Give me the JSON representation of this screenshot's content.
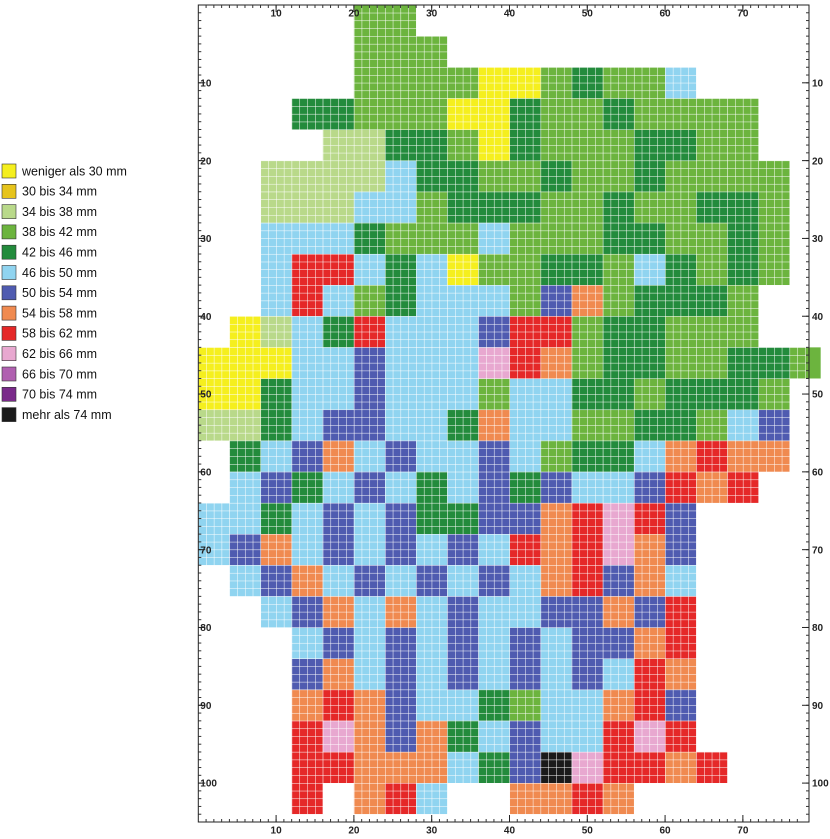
{
  "map": {
    "xlim": [
      0,
      78.5
    ],
    "ylim": [
      0,
      105
    ],
    "xticks": [
      10,
      20,
      30,
      40,
      50,
      60,
      70
    ],
    "yticks": [
      10,
      20,
      30,
      40,
      50,
      60,
      70,
      80,
      90,
      100
    ],
    "legend": [
      {
        "label": "weniger als 30 mm",
        "color": "#f5ef1e"
      },
      {
        "label": "30 bis 34 mm",
        "color": "#e6c41c"
      },
      {
        "label": "34 bis 38 mm",
        "color": "#b9d98a"
      },
      {
        "label": "38 bis 42 mm",
        "color": "#6cb43e"
      },
      {
        "label": "42 bis 46 mm",
        "color": "#238b3c"
      },
      {
        "label": "46 bis 50 mm",
        "color": "#90d4f0"
      },
      {
        "label": "50 bis 54 mm",
        "color": "#4f5bb0"
      },
      {
        "label": "54 bis 58 mm",
        "color": "#f08a50"
      },
      {
        "label": "58 bis 62 mm",
        "color": "#e52828"
      },
      {
        "label": "62 bis 66 mm",
        "color": "#e8a8d0"
      },
      {
        "label": "66 bis 70 mm",
        "color": "#b060b0"
      },
      {
        "label": "70 bis 74 mm",
        "color": "#7a2a8a"
      },
      {
        "label": "mehr als 74 mm",
        "color": "#1a1a1a"
      }
    ],
    "grid_rows": [
      ".....33.............",
      ".....333............",
      ".....33330034335....",
      "...443330043343333..",
      "....22443043334433..",
      "..22225443343343333.",
      "..22255344433433443.",
      "..55543335333443343.",
      "..58854503344354343.",
      "..5853455536734443..",
      ".02548555688344333..",
      "00055655598734433443",
      "0045565553554434443.",
      "2245665547553344356.",
      ".456756556534457877.",
      ".56456545646556878..",
      "5545656446678986....",
      "5675656565878976....",
      ".567565656578675....",
      "..56757565566768....",
      "...5656565656678....",
      "...6756565656587....",
      "...7876554355786....",
      "...8976745655898....",
      "...88777546c98878...",
      "...8.785..7787......"
    ]
  }
}
